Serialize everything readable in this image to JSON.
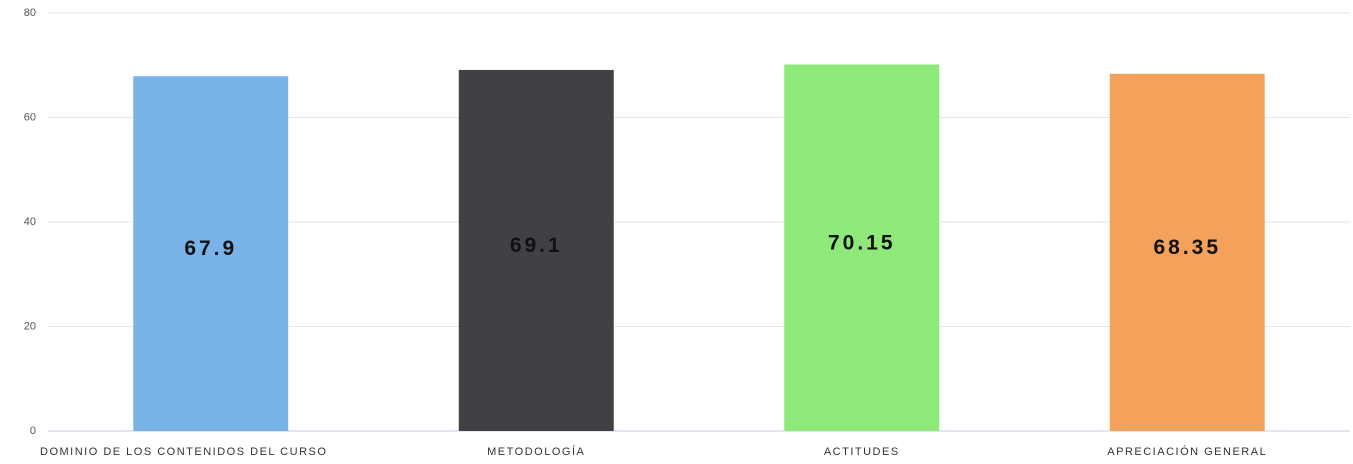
{
  "chart_data": {
    "type": "bar",
    "categories": [
      "DOMINIO DE LOS CONTENIDOS DEL CURSO",
      "METODOLOGÍA",
      "ACTITUDES",
      "APRECIACIÓN GENERAL"
    ],
    "values": [
      67.9,
      69.1,
      70.15,
      68.35
    ],
    "colors": [
      "#7ab3e8",
      "#414045",
      "#8ee87a",
      "#f4a15c"
    ],
    "ylim": [
      0,
      80
    ],
    "yticks": [
      0,
      20,
      40,
      60,
      80
    ],
    "grid": true
  }
}
